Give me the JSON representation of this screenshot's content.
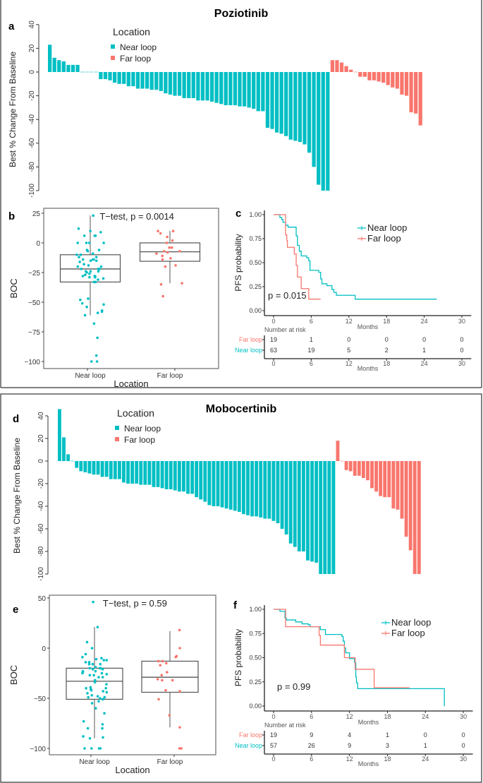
{
  "colors": {
    "near": "#00BFC4",
    "far": "#F8766D",
    "axis": "#333333",
    "box": "#555555"
  },
  "figure": {
    "top_title": "Poziotinib",
    "bottom_title": "Mobocertinib",
    "panel_letters": [
      "a",
      "b",
      "c",
      "d",
      "e",
      "f"
    ]
  },
  "chart_data": [
    {
      "panel": "a",
      "type": "bar",
      "ylabel": "Best % Change From Baseline",
      "ylim": [
        -100,
        40
      ],
      "yticks": [
        "-100",
        "-80",
        "-60",
        "-40",
        "-20",
        "0",
        "20",
        "40"
      ],
      "legend": {
        "title": "Location",
        "entries": [
          "Near loop",
          "Far loop"
        ],
        "placement": "top-left"
      },
      "series": [
        {
          "name": "Near loop",
          "values": [
            23,
            12,
            10,
            9,
            6,
            6,
            6,
            0,
            0,
            0,
            0,
            -6,
            -6,
            -7,
            -9,
            -10,
            -10,
            -12,
            -12,
            -14,
            -14,
            -14,
            -15,
            -15,
            -16,
            -18,
            -19,
            -20,
            -20,
            -22,
            -22,
            -22,
            -24,
            -24,
            -24,
            -25,
            -26,
            -27,
            -28,
            -28,
            -28,
            -29,
            -29,
            -30,
            -31,
            -33,
            -33,
            -47,
            -48,
            -51,
            -52,
            -54,
            -57,
            -58,
            -59,
            -61,
            -68,
            -80,
            -95,
            -100,
            -100
          ]
        },
        {
          "name": "Far loop",
          "values": [
            10,
            10,
            8,
            5,
            2,
            0,
            -4,
            -4,
            -7,
            -7,
            -8,
            -9,
            -11,
            -13,
            -14,
            -19,
            -20,
            -34,
            -35,
            -45
          ]
        }
      ]
    },
    {
      "panel": "b",
      "type": "box",
      "title": "T−test, p = 0.0014",
      "xlabel": "Location",
      "ylabel": "BOC",
      "ylim": [
        -100,
        25
      ],
      "yticks": [
        "25",
        "0",
        "−25",
        "−50",
        "−75",
        "−100"
      ],
      "categories": [
        "Near loop",
        "Far loop"
      ],
      "boxes": [
        {
          "q1": -33,
          "median": -22,
          "q3": -10,
          "whisker_low": -61,
          "whisker_high": 23
        },
        {
          "q1": -15.5,
          "median": -7.5,
          "q3": 0,
          "whisker_low": -34,
          "whisker_high": 10
        }
      ]
    },
    {
      "panel": "c",
      "type": "line",
      "ylabel": "PFS probability",
      "xlabel": "Months",
      "xlim": [
        0,
        30
      ],
      "ylim": [
        0,
        1
      ],
      "xticks": [
        "0",
        "6",
        "12",
        "18",
        "24",
        "30"
      ],
      "yticks": [
        "0.00",
        "0.25",
        "0.50",
        "0.75",
        "1.00"
      ],
      "annotation": "p = 0.015",
      "legend": [
        "Near loop",
        "Far loop"
      ],
      "series": [
        {
          "name": "Near loop",
          "steps": [
            [
              0,
              1
            ],
            [
              1,
              0.97
            ],
            [
              1.3,
              0.95
            ],
            [
              1.5,
              0.92
            ],
            [
              1.9,
              0.89
            ],
            [
              2.3,
              0.87
            ],
            [
              3.6,
              0.78
            ],
            [
              3.8,
              0.68
            ],
            [
              4.1,
              0.62
            ],
            [
              4.4,
              0.57
            ],
            [
              5.3,
              0.55
            ],
            [
              5.6,
              0.52
            ],
            [
              5.8,
              0.42
            ],
            [
              7.2,
              0.4
            ],
            [
              7.5,
              0.33
            ],
            [
              7.7,
              0.28
            ],
            [
              8.5,
              0.26
            ],
            [
              9.3,
              0.22
            ],
            [
              9.6,
              0.19
            ],
            [
              10,
              0.16
            ],
            [
              13,
              0.12
            ],
            [
              26,
              0.12
            ]
          ]
        },
        {
          "name": "Far loop",
          "steps": [
            [
              0,
              1
            ],
            [
              1.8,
              1
            ],
            [
              1.9,
              0.79
            ],
            [
              2.1,
              0.73
            ],
            [
              2.2,
              0.66
            ],
            [
              3.3,
              0.59
            ],
            [
              3.6,
              0.47
            ],
            [
              3.8,
              0.35
            ],
            [
              4.4,
              0.23
            ],
            [
              5.6,
              0.12
            ],
            [
              7.5,
              0.12
            ]
          ]
        }
      ],
      "risk_table": {
        "title": "Number at risk",
        "rows": [
          {
            "name": "Far loop",
            "values": [
              "19",
              "1",
              "0",
              "0",
              "0",
              "0"
            ]
          },
          {
            "name": "Near loop",
            "values": [
              "63",
              "19",
              "5",
              "2",
              "1",
              "0"
            ]
          }
        ],
        "xlabel": "Months"
      }
    },
    {
      "panel": "d",
      "type": "bar",
      "ylabel": "Best % Change From Baseline",
      "ylim": [
        -100,
        40
      ],
      "yticks": [
        "-100",
        "-80",
        "-60",
        "-40",
        "-20",
        "0",
        "20",
        "40"
      ],
      "legend": {
        "title": "Location",
        "entries": [
          "Near loop",
          "Far loop"
        ],
        "placement": "top-left"
      },
      "series": [
        {
          "name": "Near loop",
          "values": [
            46,
            21,
            6,
            0,
            -6,
            -9,
            -10,
            -11,
            -12,
            -12,
            -14,
            -14,
            -16,
            -16,
            -16,
            -19,
            -20,
            -20,
            -20,
            -21,
            -21,
            -21,
            -23,
            -23,
            -24,
            -25,
            -25,
            -26,
            -27,
            -27,
            -29,
            -29,
            -32,
            -34,
            -36,
            -39,
            -40,
            -40,
            -41,
            -42,
            -43,
            -44,
            -45,
            -47,
            -48,
            -49,
            -49,
            -50,
            -51,
            -51,
            -53,
            -55,
            -60,
            -65,
            -73,
            -76,
            -80,
            -80,
            -88,
            -89,
            -90,
            -100,
            -100,
            -100,
            -100
          ]
        },
        {
          "name": "Far loop",
          "values": [
            18,
            0,
            -8,
            -9,
            -13,
            -13,
            -15,
            -17,
            -24,
            -27,
            -31,
            -32,
            -32,
            -42,
            -43,
            -51,
            -67,
            -79,
            -100,
            -100
          ]
        }
      ]
    },
    {
      "panel": "e",
      "type": "box",
      "title": "T−test, p = 0.59",
      "xlabel": "Location",
      "ylabel": "BOC",
      "ylim": [
        -100,
        50
      ],
      "yticks": [
        "50",
        "0",
        "−50",
        "−100"
      ],
      "categories": [
        "Near loop",
        "Far loop"
      ],
      "boxes": [
        {
          "q1": -51,
          "median": -33,
          "q3": -20,
          "whisker_low": -90,
          "whisker_high": 21
        },
        {
          "q1": -44,
          "median": -29,
          "q3": -13,
          "whisker_low": -79,
          "whisker_high": 17
        }
      ]
    },
    {
      "panel": "f",
      "type": "line",
      "ylabel": "PFS probability",
      "xlabel": "Months",
      "xlim": [
        0,
        30
      ],
      "ylim": [
        0,
        1
      ],
      "xticks": [
        "0",
        "6",
        "12",
        "18",
        "24",
        "30"
      ],
      "yticks": [
        "0.00",
        "0.25",
        "0.50",
        "0.75",
        "1.00"
      ],
      "annotation": "p = 0.99",
      "legend": [
        "Near loop",
        "Far loop"
      ],
      "series": [
        {
          "name": "Near loop",
          "steps": [
            [
              0,
              1
            ],
            [
              1,
              0.98
            ],
            [
              1.8,
              0.91
            ],
            [
              2,
              0.89
            ],
            [
              3.5,
              0.87
            ],
            [
              4.5,
              0.85
            ],
            [
              5.5,
              0.84
            ],
            [
              5.8,
              0.82
            ],
            [
              7.4,
              0.79
            ],
            [
              8.2,
              0.74
            ],
            [
              10.8,
              0.72
            ],
            [
              11,
              0.67
            ],
            [
              11.2,
              0.6
            ],
            [
              11.4,
              0.55
            ],
            [
              12,
              0.49
            ],
            [
              12.8,
              0.45
            ],
            [
              13,
              0.3
            ],
            [
              13.1,
              0.24
            ],
            [
              13.3,
              0.18
            ],
            [
              27,
              0.18
            ],
            [
              27,
              0
            ]
          ]
        },
        {
          "name": "Far loop",
          "steps": [
            [
              0,
              1
            ],
            [
              1.8,
              1
            ],
            [
              1.9,
              0.82
            ],
            [
              7.2,
              0.73
            ],
            [
              7.4,
              0.63
            ],
            [
              11.2,
              0.5
            ],
            [
              12.9,
              0.38
            ],
            [
              15.9,
              0.19
            ],
            [
              21.5,
              0.19
            ]
          ]
        }
      ],
      "risk_table": {
        "title": "Number at risk",
        "rows": [
          {
            "name": "Far loop",
            "values": [
              "19",
              "9",
              "4",
              "1",
              "0",
              "0"
            ]
          },
          {
            "name": "Near loop",
            "values": [
              "57",
              "26",
              "9",
              "3",
              "1",
              "0"
            ]
          }
        ],
        "xlabel": "Months"
      }
    }
  ]
}
